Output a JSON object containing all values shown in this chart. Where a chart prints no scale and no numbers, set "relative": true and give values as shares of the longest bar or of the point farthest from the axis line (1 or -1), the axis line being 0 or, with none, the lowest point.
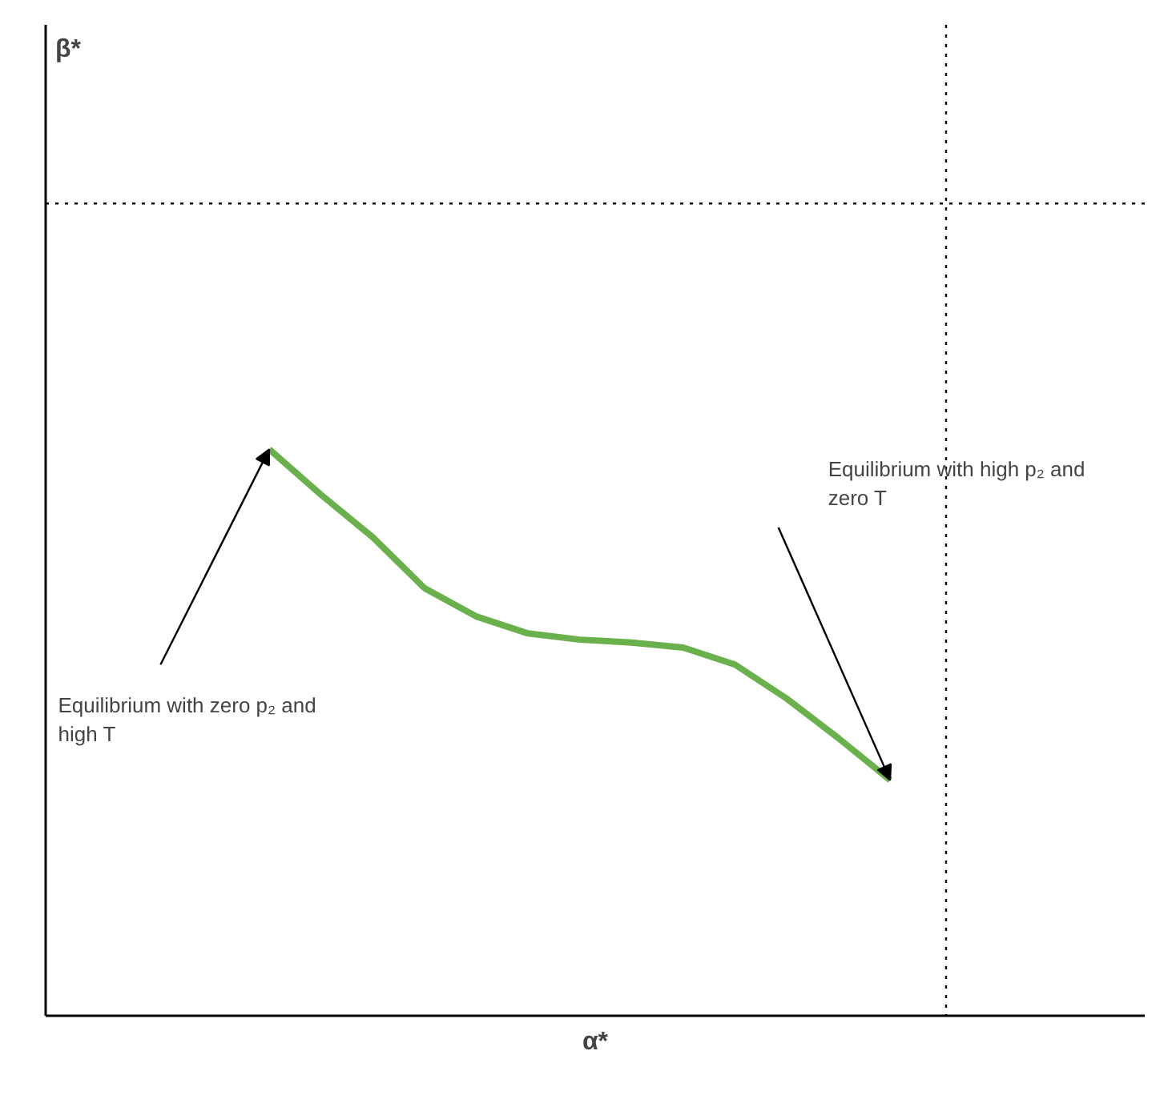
{
  "chart_data": {
    "type": "line",
    "relative": true,
    "xlabel": "α*",
    "marker": "none",
    "line_style": "solid",
    "categories": [
      null,
      null,
      null,
      null,
      null,
      null,
      null,
      null,
      null,
      null,
      null,
      null,
      null
    ],
    "series": [
      {
        "color": "#6ab04c",
        "values": [
          1,
          0.92,
          0.845,
          0.755,
          0.705,
          0.675,
          0.664,
          0.659,
          0.65,
          0.62,
          0.56,
          0.49,
          0.416
        ]
      }
    ],
    "ref_lines": [
      {
        "axis": "y",
        "value": 1.434,
        "line_style": "dotted",
        "color": "#000000"
      }
    ],
    "annotations": [
      "Equilibrium with zero p₂ and high T",
      "Equilibrium with high p₂ and zero T",
      "β*"
    ]
  }
}
